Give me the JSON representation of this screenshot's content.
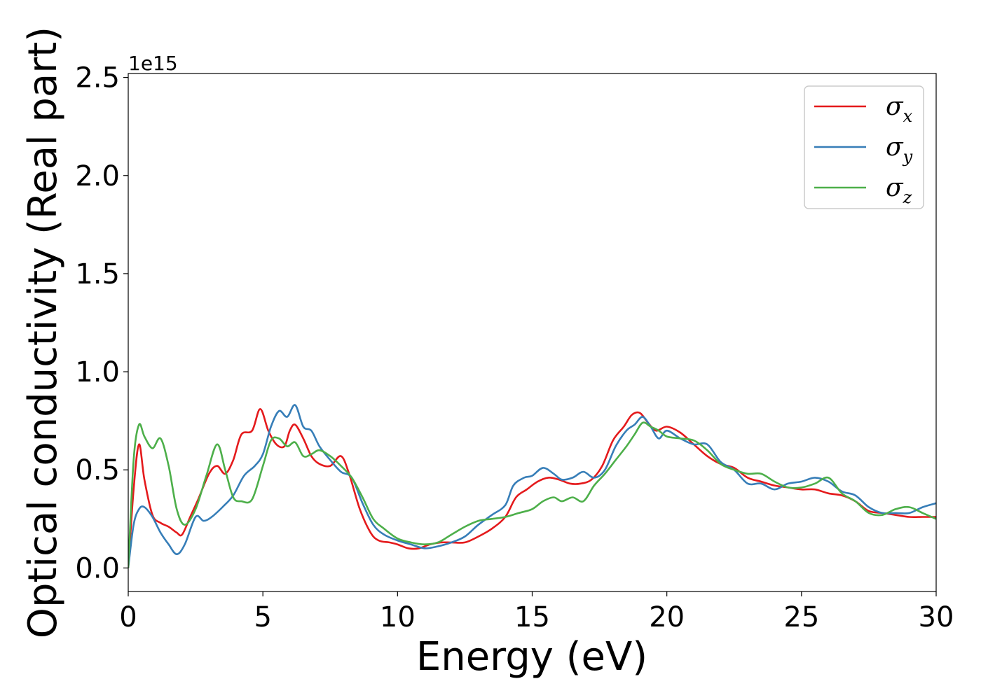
{
  "chart_data": {
    "type": "line",
    "xlabel": "Energy (eV)",
    "ylabel": "Optical conductivity (Real part)",
    "y_offset_label": "1e15",
    "xlim": [
      0,
      30
    ],
    "ylim": [
      -0.12,
      2.52
    ],
    "xticks": [
      0,
      5,
      10,
      15,
      20,
      25,
      30
    ],
    "xtick_labels": [
      "0",
      "5",
      "10",
      "15",
      "20",
      "25",
      "30"
    ],
    "yticks": [
      0.0,
      0.5,
      1.0,
      1.5,
      2.0,
      2.5
    ],
    "ytick_labels": [
      "0.0",
      "0.5",
      "1.0",
      "1.5",
      "2.0",
      "2.5"
    ],
    "grid": false,
    "legend_position": "top-right",
    "series": [
      {
        "name": "σx",
        "name_base": "σ",
        "name_sub": "x",
        "color": "#e41a1c",
        "x": [
          0,
          0.2,
          0.4,
          0.6,
          0.9,
          1.2,
          1.5,
          1.8,
          2.0,
          2.3,
          2.6,
          3.0,
          3.3,
          3.6,
          3.9,
          4.2,
          4.6,
          4.9,
          5.2,
          5.5,
          5.8,
          6.0,
          6.2,
          6.5,
          6.8,
          7.1,
          7.5,
          7.9,
          8.2,
          8.6,
          9.0,
          9.3,
          9.7,
          10.0,
          10.4,
          10.8,
          11.2,
          11.6,
          12.0,
          12.5,
          13.0,
          13.5,
          14.0,
          14.4,
          14.8,
          15.2,
          15.6,
          16.0,
          16.4,
          16.8,
          17.2,
          17.6,
          18.0,
          18.4,
          18.7,
          19.0,
          19.3,
          19.6,
          20.0,
          20.5,
          21.0,
          21.5,
          22.0,
          22.5,
          23.0,
          23.5,
          24.0,
          24.5,
          25.0,
          25.5,
          26.0,
          26.5,
          27.0,
          27.5,
          28.0,
          28.5,
          29.0,
          29.5,
          30.0
        ],
        "y": [
          0.0,
          0.4,
          0.63,
          0.45,
          0.27,
          0.23,
          0.21,
          0.18,
          0.17,
          0.26,
          0.35,
          0.48,
          0.52,
          0.48,
          0.55,
          0.68,
          0.7,
          0.81,
          0.7,
          0.63,
          0.62,
          0.7,
          0.73,
          0.66,
          0.57,
          0.53,
          0.52,
          0.57,
          0.48,
          0.3,
          0.18,
          0.14,
          0.13,
          0.12,
          0.1,
          0.1,
          0.12,
          0.13,
          0.13,
          0.13,
          0.16,
          0.2,
          0.26,
          0.36,
          0.4,
          0.44,
          0.46,
          0.45,
          0.43,
          0.43,
          0.45,
          0.52,
          0.65,
          0.72,
          0.78,
          0.79,
          0.74,
          0.7,
          0.72,
          0.69,
          0.63,
          0.57,
          0.53,
          0.51,
          0.46,
          0.44,
          0.42,
          0.41,
          0.4,
          0.4,
          0.38,
          0.37,
          0.34,
          0.29,
          0.28,
          0.27,
          0.26,
          0.26,
          0.26
        ]
      },
      {
        "name": "σy",
        "name_base": "σ",
        "name_sub": "y",
        "color": "#377eb8",
        "x": [
          0,
          0.2,
          0.4,
          0.6,
          0.9,
          1.2,
          1.5,
          1.8,
          2.1,
          2.5,
          2.8,
          3.1,
          3.5,
          3.9,
          4.3,
          4.7,
          5.0,
          5.3,
          5.6,
          5.9,
          6.2,
          6.5,
          6.8,
          7.1,
          7.5,
          7.9,
          8.3,
          8.7,
          9.1,
          9.5,
          10.0,
          10.5,
          11.0,
          11.5,
          12.0,
          12.5,
          13.0,
          13.5,
          14.0,
          14.3,
          14.7,
          15.0,
          15.4,
          15.8,
          16.1,
          16.5,
          16.9,
          17.3,
          17.7,
          18.1,
          18.5,
          18.8,
          19.1,
          19.4,
          19.7,
          20.0,
          20.5,
          21.0,
          21.5,
          22.0,
          22.5,
          23.0,
          23.5,
          24.0,
          24.5,
          25.0,
          25.5,
          26.0,
          26.5,
          27.0,
          27.5,
          28.0,
          28.5,
          29.0,
          29.5,
          30.0
        ],
        "y": [
          0.0,
          0.22,
          0.3,
          0.31,
          0.26,
          0.18,
          0.12,
          0.07,
          0.12,
          0.26,
          0.24,
          0.26,
          0.31,
          0.37,
          0.47,
          0.52,
          0.58,
          0.72,
          0.8,
          0.77,
          0.83,
          0.72,
          0.7,
          0.62,
          0.55,
          0.49,
          0.46,
          0.33,
          0.22,
          0.17,
          0.14,
          0.12,
          0.1,
          0.11,
          0.13,
          0.16,
          0.22,
          0.27,
          0.32,
          0.42,
          0.46,
          0.47,
          0.51,
          0.48,
          0.45,
          0.46,
          0.49,
          0.46,
          0.5,
          0.62,
          0.7,
          0.73,
          0.77,
          0.72,
          0.66,
          0.7,
          0.66,
          0.63,
          0.63,
          0.54,
          0.5,
          0.43,
          0.43,
          0.4,
          0.43,
          0.44,
          0.46,
          0.44,
          0.39,
          0.37,
          0.31,
          0.28,
          0.28,
          0.28,
          0.31,
          0.33
        ]
      },
      {
        "name": "σz",
        "name_base": "σ",
        "name_sub": "z",
        "color": "#4daf4a",
        "x": [
          0,
          0.2,
          0.4,
          0.6,
          0.9,
          1.2,
          1.5,
          1.8,
          2.1,
          2.5,
          2.9,
          3.3,
          3.6,
          3.9,
          4.2,
          4.6,
          5.0,
          5.3,
          5.6,
          5.9,
          6.2,
          6.5,
          6.8,
          7.1,
          7.5,
          7.9,
          8.3,
          8.7,
          9.1,
          9.5,
          10.0,
          10.5,
          11.0,
          11.5,
          12.0,
          12.5,
          13.0,
          13.5,
          14.0,
          14.5,
          15.0,
          15.4,
          15.8,
          16.1,
          16.5,
          16.9,
          17.3,
          17.7,
          18.1,
          18.5,
          18.8,
          19.1,
          19.4,
          19.7,
          20.0,
          20.5,
          21.0,
          21.5,
          22.0,
          22.5,
          23.0,
          23.5,
          24.0,
          24.5,
          25.0,
          25.5,
          26.0,
          26.5,
          27.0,
          27.5,
          28.0,
          28.5,
          29.0,
          29.5,
          30.0
        ],
        "y": [
          0.0,
          0.55,
          0.73,
          0.67,
          0.61,
          0.66,
          0.52,
          0.3,
          0.22,
          0.3,
          0.47,
          0.63,
          0.5,
          0.36,
          0.34,
          0.35,
          0.52,
          0.65,
          0.66,
          0.62,
          0.64,
          0.57,
          0.58,
          0.6,
          0.57,
          0.52,
          0.46,
          0.36,
          0.25,
          0.2,
          0.15,
          0.13,
          0.12,
          0.13,
          0.17,
          0.21,
          0.24,
          0.25,
          0.26,
          0.28,
          0.3,
          0.34,
          0.36,
          0.34,
          0.36,
          0.34,
          0.42,
          0.48,
          0.55,
          0.62,
          0.68,
          0.74,
          0.72,
          0.7,
          0.67,
          0.66,
          0.65,
          0.6,
          0.53,
          0.5,
          0.48,
          0.48,
          0.44,
          0.41,
          0.41,
          0.43,
          0.46,
          0.38,
          0.34,
          0.28,
          0.27,
          0.3,
          0.31,
          0.28,
          0.25
        ]
      }
    ]
  }
}
